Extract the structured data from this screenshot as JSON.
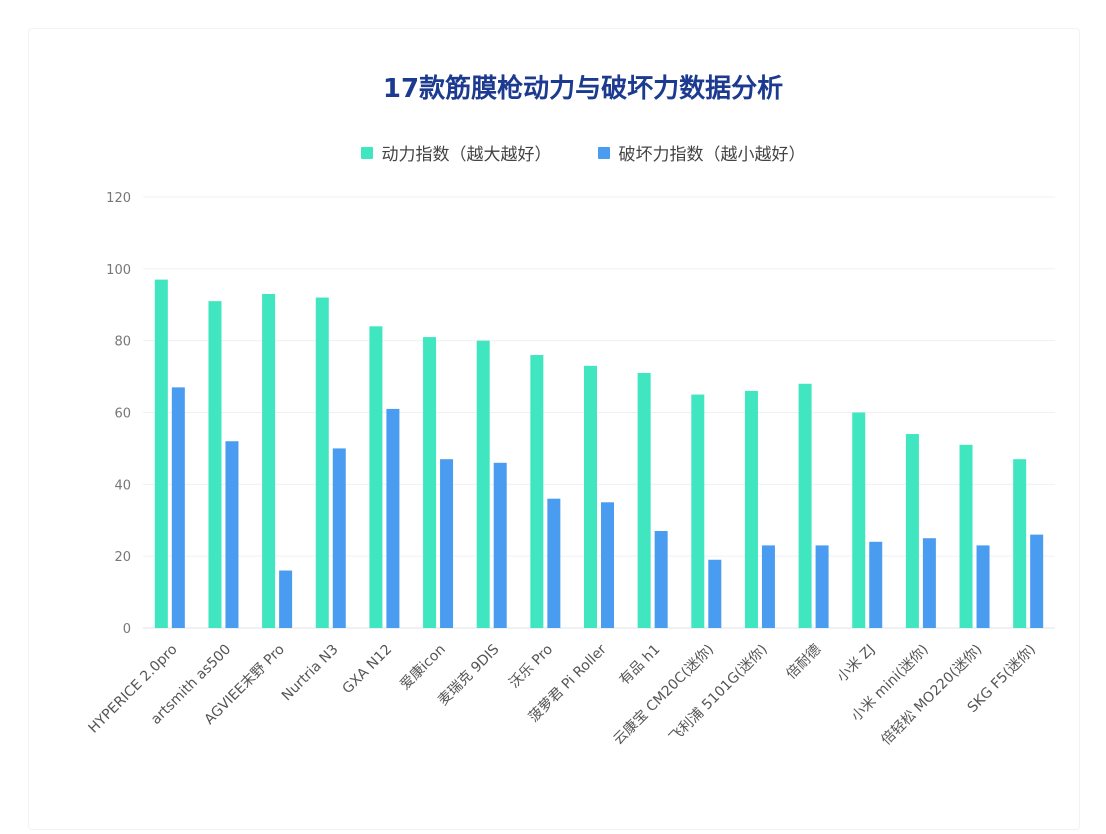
{
  "chart_data": {
    "type": "bar",
    "title": "17款筋膜枪动力与破坏力数据分析",
    "categories": [
      "HYPERICE 2.0pro",
      "artsmith as500",
      "AGVIEE末野 Pro",
      "Nurtria N3",
      "GXA N12",
      "爱康icon",
      "麦瑞克 9DIS",
      "沃乐 Pro",
      "菠萝君 Pi Roller",
      "有品 h1",
      "云康宝 CM20C(迷你)",
      "飞利浦 5101G(迷你)",
      "倍耐德",
      "小米 ZJ",
      "小米 mini(迷你)",
      "倍轻松 MO220(迷你)",
      "SKG F5(迷你)"
    ],
    "series": [
      {
        "name": "动力指数（越大越好）",
        "color": "#3fe6c0",
        "values": [
          97,
          91,
          93,
          92,
          84,
          81,
          80,
          76,
          73,
          71,
          65,
          66,
          68,
          60,
          54,
          51,
          47
        ]
      },
      {
        "name": "破坏力指数（越小越好）",
        "color": "#4a9cf0",
        "values": [
          67,
          52,
          16,
          50,
          61,
          47,
          46,
          36,
          35,
          27,
          19,
          23,
          23,
          24,
          25,
          23,
          26
        ]
      }
    ],
    "ylim": [
      0,
      120
    ],
    "yticks": [
      0,
      20,
      40,
      60,
      80,
      100,
      120
    ],
    "grid": true,
    "legend_position": "top-center",
    "xlabel": "",
    "ylabel": ""
  }
}
